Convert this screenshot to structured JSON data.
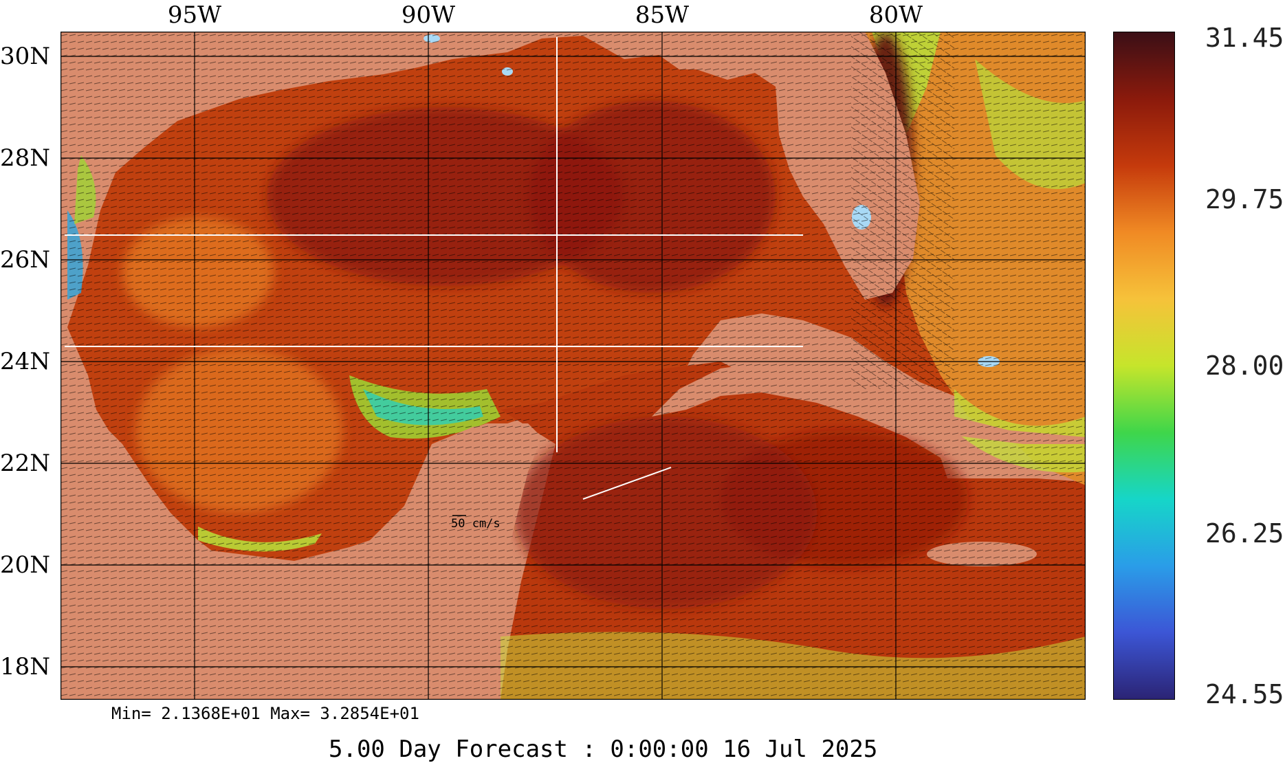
{
  "axes": {
    "longitude_labels": [
      "95W",
      "90W",
      "85W",
      "80W"
    ],
    "latitude_labels": [
      "30N",
      "28N",
      "26N",
      "24N",
      "22N",
      "20N",
      "18N"
    ]
  },
  "colorbar": {
    "ticks": [
      "31.45",
      "29.75",
      "28.00",
      "26.25",
      "24.55"
    ],
    "colors": [
      "#3b0f16",
      "#8b1a0c",
      "#c53a0c",
      "#f08a24",
      "#f6c23a",
      "#c6e52b",
      "#3fd64a",
      "#16d6c8",
      "#2a9de8",
      "#3c56d6",
      "#2b2475"
    ]
  },
  "stats_text": "Min= 2.1368E+01  Max= 3.2854E+01",
  "scale_label": "50 cm/s",
  "forecast_title": "5.00 Day Forecast :  0:00:00  16 Jul 2025",
  "colors": {
    "land": "#d98c6d",
    "lake": "#a9d9f5",
    "warm_sea": "#b8360d",
    "hot_sea": "#8c180a"
  }
}
